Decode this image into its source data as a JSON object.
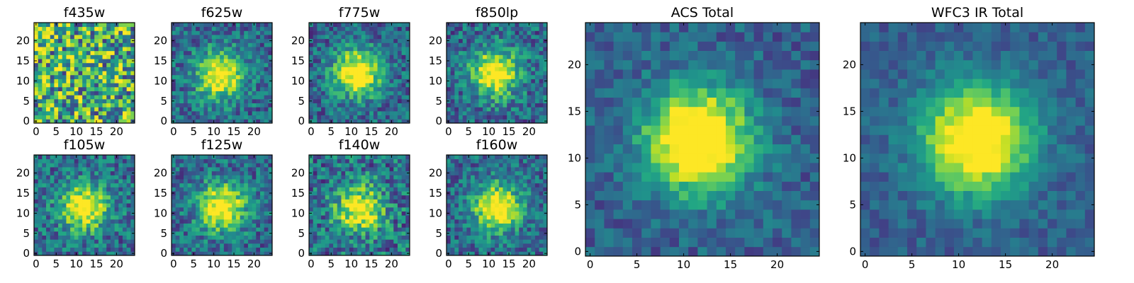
{
  "chart_data": [
    {
      "type": "heatmap",
      "title": "f435w",
      "xlim": [
        0,
        24
      ],
      "ylim": [
        0,
        24
      ],
      "xticks": [
        "0",
        "5",
        "10",
        "15",
        "20"
      ],
      "yticks": [
        "0",
        "5",
        "10",
        "15",
        "20"
      ],
      "peak": [
        12,
        12
      ],
      "peak_strength": 0.15,
      "noise": 0.55,
      "colormap": "viridis"
    },
    {
      "type": "heatmap",
      "title": "f625w",
      "xlim": [
        0,
        24
      ],
      "ylim": [
        0,
        24
      ],
      "xticks": [
        "0",
        "5",
        "10",
        "15",
        "20"
      ],
      "yticks": [
        "0",
        "5",
        "10",
        "15",
        "20"
      ],
      "peak": [
        11.5,
        11.5
      ],
      "peak_strength": 0.85,
      "noise": 0.28,
      "colormap": "viridis"
    },
    {
      "type": "heatmap",
      "title": "f775w",
      "xlim": [
        0,
        24
      ],
      "ylim": [
        0,
        24
      ],
      "xticks": [
        "0",
        "5",
        "10",
        "15",
        "20"
      ],
      "yticks": [
        "0",
        "5",
        "10",
        "15",
        "20"
      ],
      "peak": [
        11.5,
        12
      ],
      "peak_strength": 0.9,
      "noise": 0.28,
      "colormap": "viridis"
    },
    {
      "type": "heatmap",
      "title": "f850lp",
      "xlim": [
        0,
        24
      ],
      "ylim": [
        0,
        24
      ],
      "xticks": [
        "0",
        "5",
        "10",
        "15",
        "20"
      ],
      "yticks": [
        "0",
        "5",
        "10",
        "15",
        "20"
      ],
      "peak": [
        11.5,
        12
      ],
      "peak_strength": 0.85,
      "noise": 0.3,
      "colormap": "viridis"
    },
    {
      "type": "heatmap",
      "title": "f105w",
      "xlim": [
        0,
        24
      ],
      "ylim": [
        0,
        24
      ],
      "xticks": [
        "0",
        "5",
        "10",
        "15",
        "20"
      ],
      "yticks": [
        "0",
        "5",
        "10",
        "15",
        "20"
      ],
      "peak": [
        12,
        11.5
      ],
      "peak_strength": 0.8,
      "noise": 0.3,
      "colormap": "viridis"
    },
    {
      "type": "heatmap",
      "title": "f125w",
      "xlim": [
        0,
        24
      ],
      "ylim": [
        0,
        24
      ],
      "xticks": [
        "0",
        "5",
        "10",
        "15",
        "20"
      ],
      "yticks": [
        "0",
        "5",
        "10",
        "15",
        "20"
      ],
      "peak": [
        12,
        11.5
      ],
      "peak_strength": 0.85,
      "noise": 0.28,
      "colormap": "viridis"
    },
    {
      "type": "heatmap",
      "title": "f140w",
      "xlim": [
        0,
        24
      ],
      "ylim": [
        0,
        24
      ],
      "xticks": [
        "0",
        "5",
        "10",
        "15",
        "20"
      ],
      "yticks": [
        "0",
        "5",
        "10",
        "15",
        "20"
      ],
      "peak": [
        12,
        11
      ],
      "peak_strength": 0.75,
      "noise": 0.35,
      "colormap": "viridis"
    },
    {
      "type": "heatmap",
      "title": "f160w",
      "xlim": [
        0,
        24
      ],
      "ylim": [
        0,
        24
      ],
      "xticks": [
        "0",
        "5",
        "10",
        "15",
        "20"
      ],
      "yticks": [
        "0",
        "5",
        "10",
        "15",
        "20"
      ],
      "peak": [
        12,
        11.5
      ],
      "peak_strength": 0.85,
      "noise": 0.28,
      "colormap": "viridis"
    },
    {
      "type": "heatmap",
      "title": "ACS Total",
      "xlim": [
        0,
        24
      ],
      "ylim": [
        0,
        24
      ],
      "xticks": [
        "0",
        "5",
        "10",
        "15",
        "20"
      ],
      "yticks": [
        "0",
        "5",
        "10",
        "15",
        "20"
      ],
      "peak": [
        11.5,
        12
      ],
      "peak_strength": 1.0,
      "noise": 0.18,
      "colormap": "viridis"
    },
    {
      "type": "heatmap",
      "title": "WFC3 IR Total",
      "xlim": [
        0,
        24
      ],
      "ylim": [
        0,
        24
      ],
      "xticks": [
        "0",
        "5",
        "10",
        "15",
        "20"
      ],
      "yticks": [
        "0",
        "5",
        "10",
        "15",
        "20"
      ],
      "peak": [
        12,
        12
      ],
      "peak_strength": 1.0,
      "noise": 0.14,
      "colormap": "viridis"
    }
  ]
}
